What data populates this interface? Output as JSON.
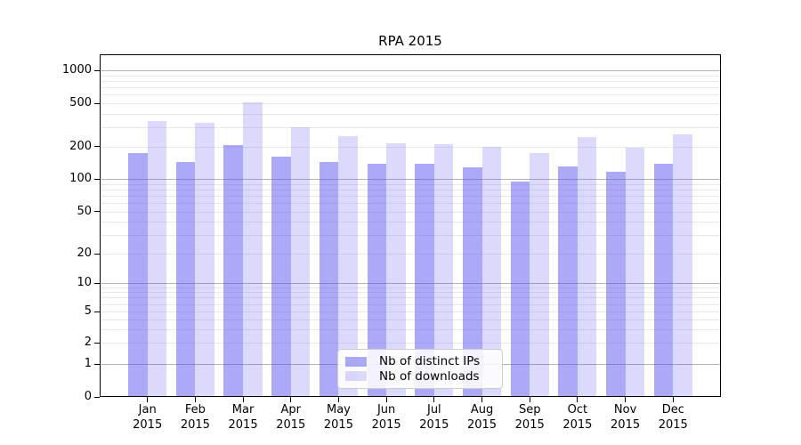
{
  "title": "RPA 2015",
  "legend": {
    "items": [
      {
        "label": "Nb of distinct IPs"
      },
      {
        "label": "Nb of downloads"
      }
    ]
  },
  "colors": {
    "bar_ips": "rgba(90,84,240,0.50)",
    "bar_downloads": "rgba(90,84,240,0.22)",
    "grid_major": "#b3b3b3",
    "grid_minor": "#e9e9e9",
    "axis": "#000000"
  },
  "chart_data": {
    "type": "bar",
    "title": "RPA 2015",
    "categories": [
      "Jan 2015",
      "Feb 2015",
      "Mar 2015",
      "Apr 2015",
      "May 2015",
      "Jun 2015",
      "Jul 2015",
      "Aug 2015",
      "Sep 2015",
      "Oct 2015",
      "Nov 2015",
      "Dec 2015"
    ],
    "series": [
      {
        "name": "Nb of distinct IPs",
        "values": [
          172,
          143,
          205,
          160,
          144,
          137,
          137,
          129,
          94,
          131,
          116,
          139
        ]
      },
      {
        "name": "Nb of downloads",
        "values": [
          340,
          332,
          512,
          303,
          248,
          212,
          210,
          197,
          173,
          242,
          194,
          258
        ]
      }
    ],
    "xlabel": "",
    "ylabel": "",
    "yscale": "symlog",
    "yticks": [
      0,
      1,
      2,
      5,
      10,
      20,
      50,
      100,
      200,
      500,
      1000
    ],
    "minor_gridlines": [
      2,
      3,
      4,
      5,
      6,
      7,
      8,
      9,
      20,
      30,
      40,
      50,
      60,
      70,
      80,
      90,
      200,
      300,
      400,
      500,
      600,
      700,
      800,
      900
    ],
    "major_gridlines": [
      1,
      10,
      100,
      1000
    ],
    "ylim": [
      0,
      1300
    ],
    "grid": true,
    "legend_position": "lower center inside axes"
  }
}
